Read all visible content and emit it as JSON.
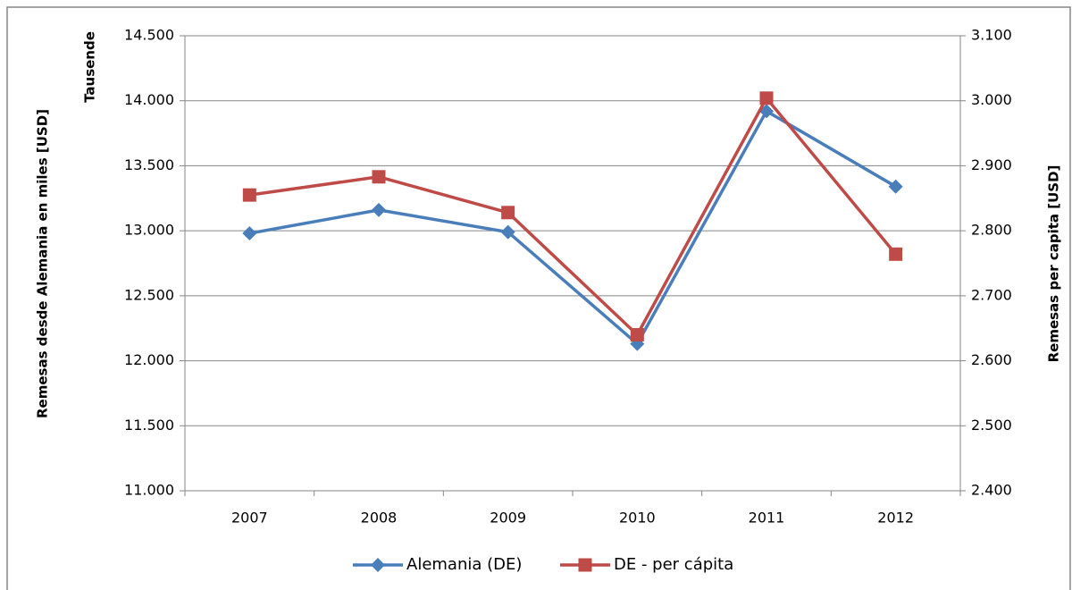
{
  "chart_data": {
    "type": "line",
    "y_axis_label": "Remesas desde Alemania en miles [USD]",
    "y_display_unit": "Tausende",
    "y2_axis_label": "Remesas per capita [USD]",
    "categories": [
      "2007",
      "2008",
      "2009",
      "2010",
      "2011",
      "2012"
    ],
    "series": [
      {
        "name": "Alemania (DE)",
        "color": "#4a7ebb",
        "marker": "diamond",
        "values": [
          12980,
          13160,
          12990,
          12130,
          13920,
          13340
        ]
      },
      {
        "name": "DE - per cápita",
        "color": "#be4b48",
        "marker": "square",
        "axis": "y2",
        "values": [
          2855,
          2883,
          2828,
          2640,
          3004,
          2764
        ]
      }
    ],
    "ylim": [
      11000,
      14500
    ],
    "yticks": [
      {
        "value": 11000,
        "label": "11.000"
      },
      {
        "value": 11500,
        "label": "11.500"
      },
      {
        "value": 12000,
        "label": "12.000"
      },
      {
        "value": 12500,
        "label": "12.500"
      },
      {
        "value": 13000,
        "label": "13.000"
      },
      {
        "value": 13500,
        "label": "13.500"
      },
      {
        "value": 14000,
        "label": "14.000"
      },
      {
        "value": 14500,
        "label": "14.500"
      }
    ],
    "y2lim": [
      2400,
      3100
    ],
    "y2ticks": [
      {
        "value": 2400,
        "label": "2.400"
      },
      {
        "value": 2500,
        "label": "2.500"
      },
      {
        "value": 2600,
        "label": "2.600"
      },
      {
        "value": 2700,
        "label": "2.700"
      },
      {
        "value": 2800,
        "label": "2.800"
      },
      {
        "value": 2900,
        "label": "2.900"
      },
      {
        "value": 3000,
        "label": "3.000"
      },
      {
        "value": 3100,
        "label": "3.100"
      }
    ],
    "grid": true,
    "legend": "bottom"
  }
}
